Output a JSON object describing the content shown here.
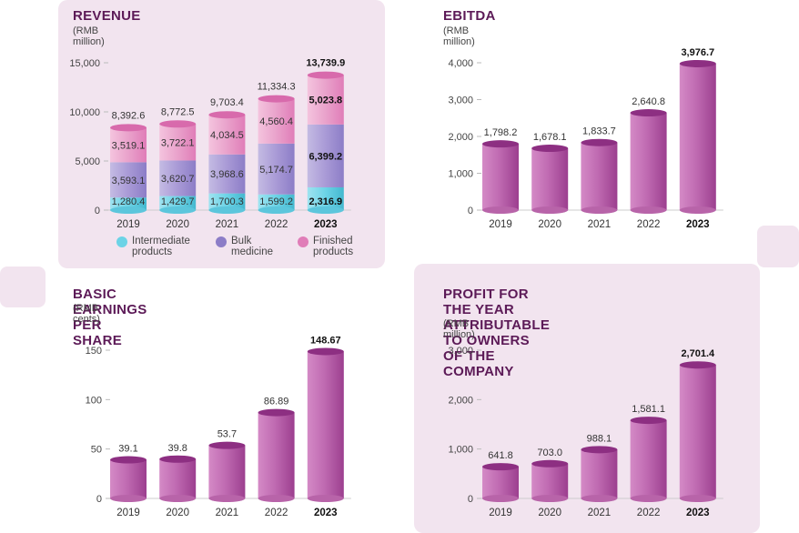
{
  "colors": {
    "panel_bg": "#f2e4ef",
    "title": "#5c1a57",
    "intermediate": "#6cd3e6",
    "bulk": "#8c7dc7",
    "finished": "#e07db8",
    "bar": "#b55aa7"
  },
  "chart_data": [
    {
      "id": "revenue",
      "type": "bar",
      "stacked": true,
      "title": "REVENUE",
      "subtitle": "(RMB million)",
      "categories": [
        "2019",
        "2020",
        "2021",
        "2022",
        "2023"
      ],
      "highlight_category": "2023",
      "series": [
        {
          "name": "Intermediate products",
          "values": [
            1280.4,
            1429.7,
            1700.3,
            1599.2,
            2316.9
          ],
          "labels": [
            "1,280.4",
            "1,429.7",
            "1,700.3",
            "1,599.2",
            "2,316.9"
          ]
        },
        {
          "name": "Bulk medicine",
          "values": [
            3593.1,
            3620.7,
            3968.6,
            5174.7,
            6399.2
          ],
          "labels": [
            "3,593.1",
            "3,620.7",
            "3,968.6",
            "5,174.7",
            "6,399.2"
          ]
        },
        {
          "name": "Finished products",
          "values": [
            3519.1,
            3722.1,
            4034.5,
            4560.4,
            5023.8
          ],
          "labels": [
            "3,519.1",
            "3,722.1",
            "4,034.5",
            "4,560.4",
            "5,023.8"
          ]
        }
      ],
      "totals": [
        8392.6,
        8772.5,
        9703.4,
        11334.3,
        13739.9
      ],
      "total_labels": [
        "8,392.6",
        "8,772.5",
        "9,703.4",
        "11,334.3",
        "13,739.9"
      ],
      "yticks": [
        0,
        5000,
        10000,
        15000
      ],
      "ytick_labels": [
        "0",
        "5,000",
        "10,000",
        "15,000"
      ],
      "ylim": [
        0,
        15000
      ],
      "legend": [
        {
          "line1": "Intermediate",
          "line2": "products"
        },
        {
          "line1": "Bulk",
          "line2": "medicine"
        },
        {
          "line1": "Finished",
          "line2": "products"
        }
      ]
    },
    {
      "id": "ebitda",
      "type": "bar",
      "title": "EBITDA",
      "subtitle": "(RMB million)",
      "categories": [
        "2019",
        "2020",
        "2021",
        "2022",
        "2023"
      ],
      "highlight_category": "2023",
      "values": [
        1798.2,
        1678.1,
        1833.7,
        2640.8,
        3976.7
      ],
      "labels": [
        "1,798.2",
        "1,678.1",
        "1,833.7",
        "2,640.8",
        "3,976.7"
      ],
      "yticks": [
        0,
        1000,
        2000,
        3000,
        4000
      ],
      "ytick_labels": [
        "0",
        "1,000",
        "2,000",
        "3,000",
        "4,000"
      ],
      "ylim": [
        0,
        4000
      ]
    },
    {
      "id": "eps",
      "type": "bar",
      "title": "BASIC EARNINGS PER SHARE",
      "subtitle": "(RMB cents)",
      "categories": [
        "2019",
        "2020",
        "2021",
        "2022",
        "2023"
      ],
      "highlight_category": "2023",
      "values": [
        39.1,
        39.8,
        53.7,
        86.89,
        148.67
      ],
      "labels": [
        "39.1",
        "39.8",
        "53.7",
        "86.89",
        "148.67"
      ],
      "yticks": [
        0,
        50,
        100,
        150
      ],
      "ytick_labels": [
        "0",
        "50",
        "100",
        "150"
      ],
      "ylim": [
        0,
        150
      ]
    },
    {
      "id": "profit",
      "type": "bar",
      "title": "PROFIT FOR THE YEAR ATTRIBUTABLE TO OWNERS OF THE COMPANY",
      "title_line1": "PROFIT FOR THE YEAR ATTRIBUTABLE",
      "title_line2": "TO OWNERS OF THE COMPANY",
      "subtitle": "(RMB million)",
      "categories": [
        "2019",
        "2020",
        "2021",
        "2022",
        "2023"
      ],
      "highlight_category": "2023",
      "values": [
        641.8,
        703.0,
        988.1,
        1581.1,
        2701.4
      ],
      "labels": [
        "641.8",
        "703.0",
        "988.1",
        "1,581.1",
        "2,701.4"
      ],
      "yticks": [
        0,
        1000,
        2000,
        3000
      ],
      "ytick_labels": [
        "0",
        "1,000",
        "2,000",
        "3,000"
      ],
      "ylim": [
        0,
        3000
      ]
    }
  ]
}
